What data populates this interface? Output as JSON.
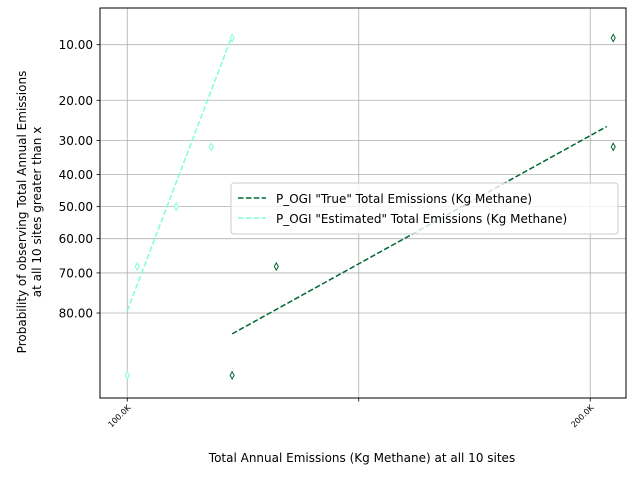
{
  "chart_data": {
    "type": "line",
    "title": "",
    "xlabel": "Total Annual Emissions (Kg Methane) at all 10 sites",
    "ylabel_lines": [
      "Probability of observing Total Annual Emissions",
      "at all 10 sites greater than x"
    ],
    "x_scale": "log",
    "y_scale": "probit",
    "y_inverted": true,
    "xlim": [
      96000,
      211000
    ],
    "ylim": [
      5.8,
      93.5
    ],
    "xticks": [
      {
        "value": 100000,
        "label": "100.0K"
      },
      {
        "value": 141421,
        "label": ""
      },
      {
        "value": 200000,
        "label": "200.0K"
      }
    ],
    "yticks": [
      {
        "value": 10,
        "label": "10.00"
      },
      {
        "value": 20,
        "label": "20.00"
      },
      {
        "value": 30,
        "label": "30.00"
      },
      {
        "value": 40,
        "label": "40.00"
      },
      {
        "value": 50,
        "label": "50.00"
      },
      {
        "value": 60,
        "label": "60.00"
      },
      {
        "value": 70,
        "label": "70.00"
      },
      {
        "value": 80,
        "label": "80.00"
      }
    ],
    "grid": true,
    "legend_position": "center-right",
    "series": [
      {
        "name": "P_OGI \"True\" Total Emissions (Kg Methane)",
        "color": "#006633",
        "marker": "thin_diamond",
        "points": [
          {
            "x": 117000,
            "y": 90.9
          },
          {
            "x": 125000,
            "y": 68.2
          },
          {
            "x": 207000,
            "y": 31.8
          },
          {
            "x": 207000,
            "y": 9.1
          }
        ],
        "fit": [
          {
            "x": 117000,
            "y": 84.3
          },
          {
            "x": 205000,
            "y": 26.3
          }
        ]
      },
      {
        "name": "P_OGI \"Estimated\" Total Emissions (Kg Methane)",
        "color": "#7fffd4",
        "marker": "thin_diamond",
        "points": [
          {
            "x": 100000,
            "y": 90.9
          },
          {
            "x": 101500,
            "y": 68.2
          },
          {
            "x": 107600,
            "y": 50.0
          },
          {
            "x": 113400,
            "y": 31.8
          },
          {
            "x": 117000,
            "y": 9.1
          }
        ],
        "fit": [
          {
            "x": 100000,
            "y": 79.5
          },
          {
            "x": 117000,
            "y": 8.8
          }
        ]
      }
    ]
  }
}
